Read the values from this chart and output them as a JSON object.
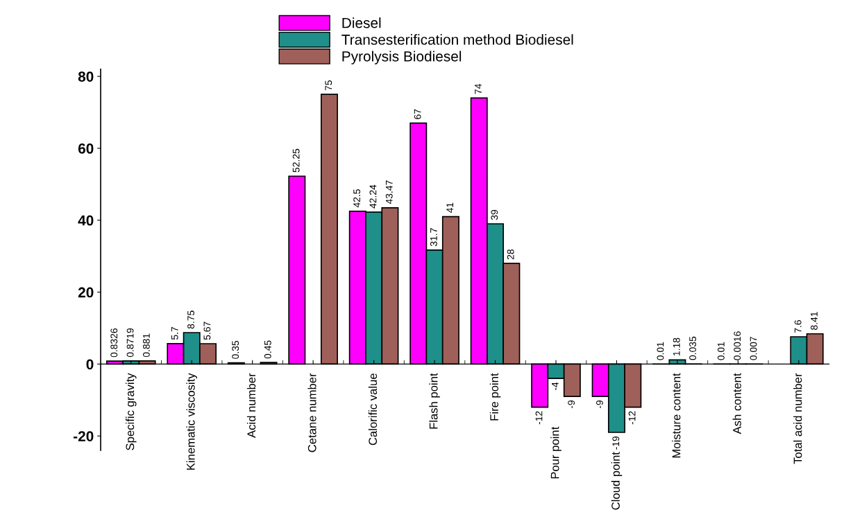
{
  "chart_data": {
    "type": "bar",
    "categories": [
      "Specific gravity",
      "Kinematic viscosity",
      "Acid number",
      "Cetane number",
      "Calorific value",
      "Flash point",
      "Fire point",
      "Pour point",
      "Cloud point",
      "Moisture content",
      "Ash content",
      "Total acid number"
    ],
    "series": [
      {
        "name": "Diesel",
        "color": "#ff00ff",
        "values": [
          0.8326,
          5.7,
          0.35,
          52.25,
          42.5,
          67,
          74,
          -12,
          -9,
          0.01,
          0.01,
          null
        ],
        "value_labels": [
          "0.8326",
          "5.7",
          "0.35",
          "52.25",
          "42.5",
          "67",
          "74",
          "-12",
          "-9",
          "0.01",
          "0.01",
          null
        ]
      },
      {
        "name": "Transesterification method Biodiesel",
        "color": "#1f8f8a",
        "values": [
          0.8719,
          8.75,
          null,
          null,
          42.24,
          31.7,
          39,
          -4,
          -19,
          1.18,
          0.0016,
          7.6
        ],
        "value_labels": [
          "0.8719",
          "8.75",
          null,
          null,
          "42.24",
          "31.7",
          "39",
          "-4",
          "-19",
          "1.18",
          "0.0016",
          "7.6"
        ]
      },
      {
        "name": "Pyrolysis Biodiesel",
        "color": "#a0605a",
        "values": [
          0.881,
          5.67,
          0.45,
          75,
          43.47,
          41,
          28,
          -9,
          -12,
          0.035,
          0.007,
          8.41
        ],
        "value_labels": [
          "0.881",
          "5.67",
          "0.45",
          "75",
          "43.47",
          "41",
          "28",
          "-9",
          "-12",
          "0.035",
          "0.007",
          "8.41"
        ]
      }
    ],
    "ylim": [
      -24,
      82
    ],
    "yticks": [
      -20,
      0,
      20,
      40,
      60,
      80
    ],
    "legend": "top",
    "grid": false
  }
}
